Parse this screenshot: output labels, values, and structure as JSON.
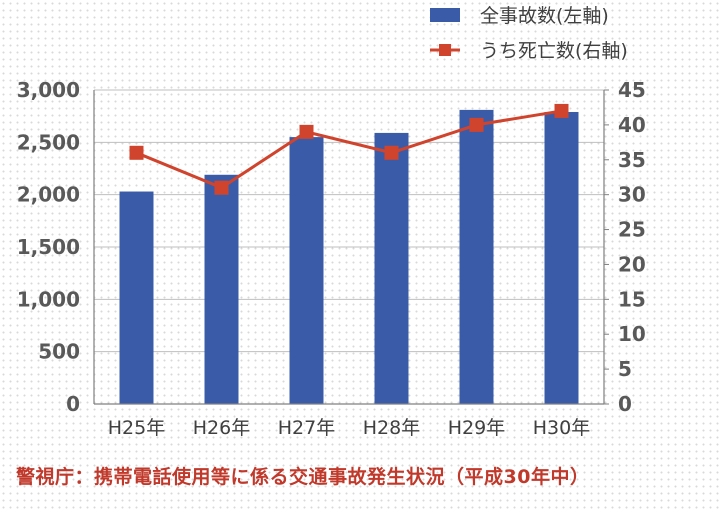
{
  "chart_data": {
    "type": "bar",
    "categories": [
      "H25年",
      "H26年",
      "H27年",
      "H28年",
      "H29年",
      "H30年"
    ],
    "series": [
      {
        "name": "全事故数(左軸)",
        "type": "bar",
        "axis": "left",
        "color": "#3a5ca8",
        "values": [
          2030,
          2190,
          2550,
          2590,
          2810,
          2790
        ]
      },
      {
        "name": "うち死亡数(右軸)",
        "type": "line",
        "axis": "right",
        "color": "#d0442d",
        "values": [
          36,
          31,
          39,
          36,
          40,
          42
        ]
      }
    ],
    "y_left": {
      "range": [
        0,
        3000
      ],
      "ticks": [
        "0",
        "500",
        "1,000",
        "1,500",
        "2,000",
        "2,500",
        "3,000"
      ]
    },
    "y_right": {
      "range": [
        0,
        45
      ],
      "ticks": [
        "0",
        "5",
        "10",
        "15",
        "20",
        "25",
        "30",
        "35",
        "40",
        "45"
      ]
    },
    "grid": true,
    "legend_position": "top-right"
  },
  "caption": "警視庁：携帯電話使用等に係る交通事故発生状況（平成30年中）"
}
